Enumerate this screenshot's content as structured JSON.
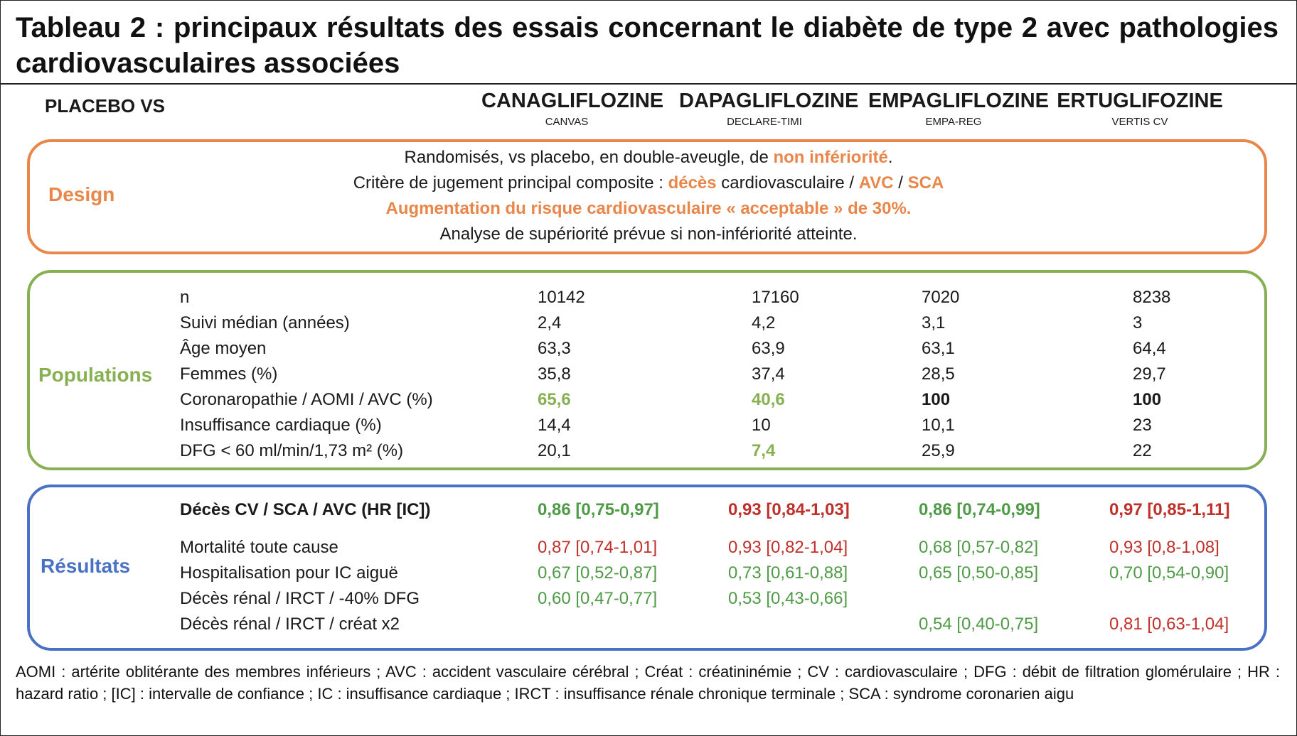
{
  "title": "Tableau 2 : principaux résultats des essais concernant le diabète de type 2 avec pathologies cardiovasculaires associées",
  "header": {
    "comparator": "PLACEBO VS",
    "drugs": [
      {
        "name": "CANAGLIFLOZINE",
        "trial": "CANVAS"
      },
      {
        "name": "DAPAGLIFLOZINE",
        "trial": "DECLARE-TIMI"
      },
      {
        "name": "EMPAGLIFLOZINE",
        "trial": "EMPA-REG"
      },
      {
        "name": "ERTUGLIFOZINE",
        "trial": "VERTIS CV"
      }
    ]
  },
  "design": {
    "label": "Design",
    "line1": {
      "a": "Randomisés, vs placebo, en double-aveugle, de ",
      "b": "non infériorité",
      "c": "."
    },
    "line2": {
      "a": "Critère de jugement principal composite : ",
      "b": "décès",
      "c": " cardiovasculaire / ",
      "d": "AVC",
      "e": " / ",
      "f": "SCA"
    },
    "line3": "Augmentation du risque cardiovasculaire « acceptable » de 30%.",
    "line4": "Analyse de supériorité prévue si non-infériorité atteinte."
  },
  "populations": {
    "label": "Populations",
    "rows": [
      {
        "label": "n",
        "values": [
          "10142",
          "17160",
          "7020",
          "8238"
        ]
      },
      {
        "label": "Suivi médian (années)",
        "values": [
          "2,4",
          "4,2",
          "3,1",
          "3"
        ]
      },
      {
        "label": "Âge moyen",
        "values": [
          "63,3",
          "63,9",
          "63,1",
          "64,4"
        ]
      },
      {
        "label": "Femmes (%)",
        "values": [
          "35,8",
          "37,4",
          "28,5",
          "29,7"
        ]
      },
      {
        "label": "Coronaropathie / AOMI / AVC (%)",
        "values": [
          "65,6",
          "40,6",
          "100",
          "100"
        ]
      },
      {
        "label": "Insuffisance cardiaque (%)",
        "values": [
          "14,4",
          "10",
          "10,1",
          "23"
        ]
      },
      {
        "label": "DFG < 60 ml/min/1,73 m² (%)",
        "values": [
          "20,1",
          "7,4",
          "25,9",
          "22"
        ]
      }
    ]
  },
  "results": {
    "label": "Résultats",
    "rows": [
      {
        "label": "Décès CV / SCA / AVC (HR [IC])",
        "values": [
          "0,86 [0,75-0,97]",
          "0,93 [0,84-1,03]",
          "0,86 [0,74-0,99]",
          "0,97 [0,85-1,11]"
        ]
      },
      {
        "label": "Mortalité toute cause",
        "values": [
          "0,87 [0,74-1,01]",
          "0,93 [0,82-1,04]",
          "0,68 [0,57-0,82]",
          "0,93 [0,8-1,08]"
        ]
      },
      {
        "label": "Hospitalisation pour IC aiguë",
        "values": [
          "0,67 [0,52-0,87]",
          "0,73 [0,61-0,88]",
          "0,65 [0,50-0,85]",
          "0,70 [0,54-0,90]"
        ]
      },
      {
        "label": "Décès rénal / IRCT / -40% DFG",
        "values": [
          "0,60 [0,47-0,77]",
          "0,53 [0,43-0,66]",
          "",
          ""
        ]
      },
      {
        "label": "Décès rénal / IRCT / créat x2",
        "values": [
          "",
          "",
          "0,54 [0,40-0,75]",
          "0,81 [0,63-1,04]"
        ]
      }
    ]
  },
  "colors": {
    "design": "#e9864a",
    "populations": "#87b052",
    "results": "#4a72c4",
    "favorable": "#4f9a46",
    "unfavorable": "#c0302a"
  },
  "footer": "AOMI : artérite oblitérante des membres inférieurs ; AVC : accident vasculaire cérébral ; Créat : créatininémie ; CV : cardiovasculaire ; DFG : débit de filtration glomérulaire ; HR : hazard ratio ; [IC] : intervalle de confiance ; IC : insuffisance cardiaque ; IRCT : insuffisance rénale chronique terminale ; SCA : syndrome coronarien aigu"
}
